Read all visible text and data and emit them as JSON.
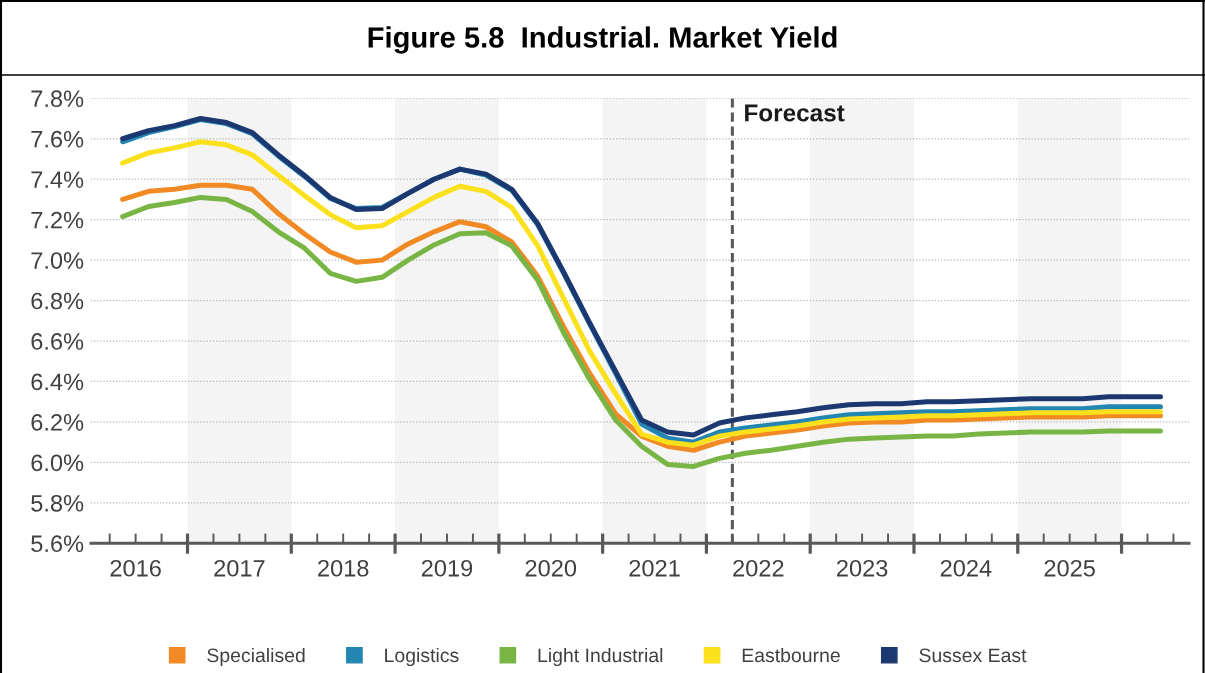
{
  "chart_data": {
    "type": "line",
    "title": "Figure 5.8  Industrial. Market Yield",
    "x": [
      2016.375,
      2016.625,
      2016.875,
      2017.125,
      2017.375,
      2017.625,
      2017.875,
      2018.125,
      2018.375,
      2018.625,
      2018.875,
      2019.125,
      2019.375,
      2019.625,
      2019.875,
      2020.125,
      2020.375,
      2020.625,
      2020.875,
      2021.125,
      2021.375,
      2021.625,
      2021.875,
      2022.125,
      2022.375,
      2022.625,
      2022.875,
      2023.125,
      2023.375,
      2023.625,
      2023.875,
      2024.125,
      2024.375,
      2024.625,
      2024.875,
      2025.125,
      2025.375,
      2025.625,
      2025.875,
      2026.125,
      2026.375
    ],
    "series": [
      {
        "name": "Specialised",
        "color": "#f18a25",
        "values": [
          7.3,
          7.34,
          7.35,
          7.37,
          7.37,
          7.35,
          7.23,
          7.13,
          7.04,
          6.99,
          7.0,
          7.08,
          7.14,
          7.19,
          7.165,
          7.09,
          6.92,
          6.67,
          6.44,
          6.24,
          6.13,
          6.08,
          6.06,
          6.1,
          6.13,
          6.145,
          6.16,
          6.18,
          6.195,
          6.2,
          6.2,
          6.21,
          6.21,
          6.215,
          6.22,
          6.225,
          6.225,
          6.225,
          6.23,
          6.23,
          6.23
        ]
      },
      {
        "name": "Logistics",
        "color": "#2386b2",
        "values": [
          7.585,
          7.63,
          7.66,
          7.695,
          7.675,
          7.625,
          7.515,
          7.415,
          7.305,
          7.255,
          7.26,
          7.33,
          7.4,
          7.45,
          7.42,
          7.345,
          7.175,
          6.935,
          6.685,
          6.44,
          6.19,
          6.12,
          6.1,
          6.15,
          6.17,
          6.185,
          6.2,
          6.22,
          6.235,
          6.24,
          6.245,
          6.25,
          6.25,
          6.255,
          6.26,
          6.265,
          6.265,
          6.265,
          6.275,
          6.275,
          6.275
        ]
      },
      {
        "name": "Light Industrial",
        "color": "#78b545",
        "values": [
          7.215,
          7.265,
          7.285,
          7.31,
          7.3,
          7.24,
          7.14,
          7.06,
          6.935,
          6.895,
          6.915,
          7.0,
          7.075,
          7.13,
          7.135,
          7.07,
          6.9,
          6.64,
          6.41,
          6.21,
          6.08,
          5.99,
          5.98,
          6.02,
          6.045,
          6.06,
          6.08,
          6.1,
          6.115,
          6.12,
          6.125,
          6.13,
          6.13,
          6.14,
          6.145,
          6.15,
          6.15,
          6.15,
          6.155,
          6.155,
          6.155
        ]
      },
      {
        "name": "Eastbourne",
        "color": "#fbe01c",
        "values": [
          7.48,
          7.53,
          7.555,
          7.585,
          7.57,
          7.52,
          7.42,
          7.32,
          7.225,
          7.16,
          7.17,
          7.24,
          7.31,
          7.365,
          7.34,
          7.26,
          7.07,
          6.81,
          6.55,
          6.34,
          6.14,
          6.1,
          6.085,
          6.13,
          6.15,
          6.165,
          6.18,
          6.2,
          6.215,
          6.22,
          6.225,
          6.23,
          6.23,
          6.235,
          6.24,
          6.245,
          6.245,
          6.245,
          6.25,
          6.25,
          6.25
        ]
      },
      {
        "name": "Sussex East",
        "color": "#1c3870",
        "values": [
          7.6,
          7.64,
          7.665,
          7.7,
          7.68,
          7.63,
          7.52,
          7.42,
          7.31,
          7.25,
          7.255,
          7.33,
          7.4,
          7.45,
          7.425,
          7.35,
          7.18,
          6.94,
          6.69,
          6.45,
          6.21,
          6.15,
          6.135,
          6.195,
          6.22,
          6.235,
          6.25,
          6.27,
          6.285,
          6.29,
          6.29,
          6.3,
          6.3,
          6.305,
          6.31,
          6.315,
          6.315,
          6.315,
          6.325,
          6.325,
          6.325
        ]
      }
    ],
    "xlim": [
      2016.07,
      2026.65
    ],
    "xticks": [
      {
        "value": 2016.25,
        "label": null
      },
      {
        "value": 2016.5,
        "label": "2016"
      },
      {
        "value": 2016.75,
        "label": null
      },
      {
        "value": 2017,
        "label": null
      },
      {
        "value": 2017.25,
        "label": null
      },
      {
        "value": 2017.5,
        "label": "2017"
      },
      {
        "value": 2017.75,
        "label": null
      },
      {
        "value": 2018,
        "label": null
      },
      {
        "value": 2018.25,
        "label": null
      },
      {
        "value": 2018.5,
        "label": "2018"
      },
      {
        "value": 2018.75,
        "label": null
      },
      {
        "value": 2019,
        "label": null
      },
      {
        "value": 2019.25,
        "label": null
      },
      {
        "value": 2019.5,
        "label": "2019"
      },
      {
        "value": 2019.75,
        "label": null
      },
      {
        "value": 2020,
        "label": null
      },
      {
        "value": 2020.25,
        "label": null
      },
      {
        "value": 2020.5,
        "label": "2020"
      },
      {
        "value": 2020.75,
        "label": null
      },
      {
        "value": 2021,
        "label": null
      },
      {
        "value": 2021.25,
        "label": null
      },
      {
        "value": 2021.5,
        "label": "2021"
      },
      {
        "value": 2021.75,
        "label": null
      },
      {
        "value": 2022,
        "label": null
      },
      {
        "value": 2022.25,
        "label": null
      },
      {
        "value": 2022.5,
        "label": "2022"
      },
      {
        "value": 2022.75,
        "label": null
      },
      {
        "value": 2023,
        "label": null
      },
      {
        "value": 2023.25,
        "label": null
      },
      {
        "value": 2023.5,
        "label": "2023"
      },
      {
        "value": 2023.75,
        "label": null
      },
      {
        "value": 2024,
        "label": null
      },
      {
        "value": 2024.25,
        "label": null
      },
      {
        "value": 2024.5,
        "label": "2024"
      },
      {
        "value": 2024.75,
        "label": null
      },
      {
        "value": 2025,
        "label": null
      },
      {
        "value": 2025.25,
        "label": null
      },
      {
        "value": 2025.5,
        "label": "2025"
      },
      {
        "value": 2025.75,
        "label": null
      },
      {
        "value": 2026,
        "label": null
      },
      {
        "value": 2026.25,
        "label": null
      },
      {
        "value": 2026.5,
        "label": null
      }
    ],
    "ylim": [
      5.6,
      7.8
    ],
    "yticks": [
      {
        "value": 5.6,
        "label": "5.6%"
      },
      {
        "value": 5.8,
        "label": "5.8%"
      },
      {
        "value": 6.0,
        "label": "6.0%"
      },
      {
        "value": 6.2,
        "label": "6.2%"
      },
      {
        "value": 6.4,
        "label": "6.4%"
      },
      {
        "value": 6.6,
        "label": "6.6%"
      },
      {
        "value": 6.8,
        "label": "6.8%"
      },
      {
        "value": 7.0,
        "label": "7.0%"
      },
      {
        "value": 7.2,
        "label": "7.2%"
      },
      {
        "value": 7.4,
        "label": "7.4%"
      },
      {
        "value": 7.6,
        "label": "7.6%"
      },
      {
        "value": 7.8,
        "label": "7.8%"
      }
    ],
    "grid": "y",
    "legend": "bottom",
    "marker": "none",
    "line_style": "solid",
    "bands": [
      {
        "axis": "x",
        "from": 2017,
        "to": 2018,
        "color": "#f4f4f4"
      },
      {
        "axis": "x",
        "from": 2019,
        "to": 2020,
        "color": "#f4f4f4"
      },
      {
        "axis": "x",
        "from": 2021,
        "to": 2022,
        "color": "#f4f4f4"
      },
      {
        "axis": "x",
        "from": 2023,
        "to": 2024,
        "color": "#f4f4f4"
      },
      {
        "axis": "x",
        "from": 2025,
        "to": 2026,
        "color": "#f4f4f4"
      }
    ],
    "ref_lines": [
      {
        "axis": "x",
        "value": 2022.25,
        "label": "Forecast",
        "color": "#595959",
        "line_style": "dashed"
      }
    ]
  }
}
